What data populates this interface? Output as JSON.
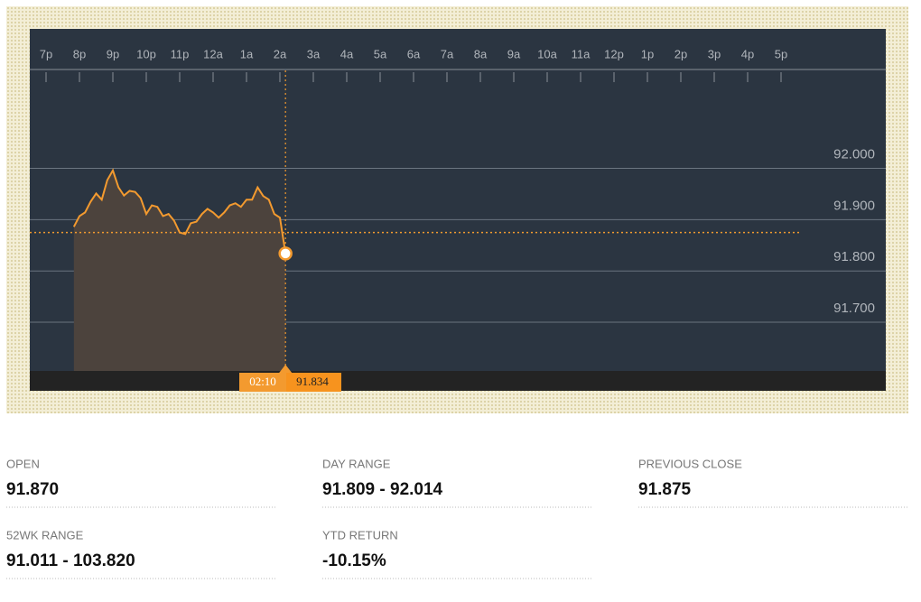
{
  "chart_data": {
    "type": "line",
    "categories": [
      "7p",
      null,
      null,
      null,
      null,
      null,
      "8p",
      null,
      null,
      null,
      null,
      null,
      "9p",
      null,
      null,
      null,
      null,
      null,
      "10p",
      null,
      null,
      null,
      null,
      null,
      "11p",
      null,
      null,
      null,
      null,
      null,
      "12a",
      null,
      null,
      null,
      null,
      null,
      "1a",
      null,
      null,
      null,
      null,
      null,
      "2a",
      null,
      null,
      null,
      null,
      null,
      "3a",
      null,
      null,
      null,
      null,
      null,
      "4a",
      null,
      null,
      null,
      null,
      null,
      "5a",
      null,
      null,
      null,
      null,
      null,
      "6a",
      null,
      null,
      null,
      null,
      null,
      "7a",
      null,
      null,
      null,
      null,
      null,
      "8a",
      null,
      null,
      null,
      null,
      null,
      "9a",
      null,
      null,
      null,
      null,
      null,
      "10a",
      null,
      null,
      null,
      null,
      null,
      "11a",
      null,
      null,
      null,
      null,
      null,
      "12p",
      null,
      null,
      null,
      null,
      null,
      "1p",
      null,
      null,
      null,
      null,
      null,
      "2p",
      null,
      null,
      null,
      null,
      null,
      "3p",
      null,
      null,
      null,
      null,
      null,
      "4p",
      null,
      null,
      null,
      null,
      null,
      "5p"
    ],
    "series": [
      {
        "color": "#f39a2f",
        "values": [
          null,
          null,
          null,
          null,
          null,
          91.886,
          91.907,
          91.914,
          91.935,
          91.951,
          91.939,
          91.977,
          91.996,
          91.963,
          91.947,
          91.956,
          91.954,
          91.942,
          91.911,
          91.928,
          91.925,
          91.907,
          91.911,
          91.898,
          91.875,
          91.872,
          91.893,
          91.896,
          91.911,
          91.921,
          91.914,
          91.904,
          91.914,
          91.928,
          91.932,
          91.925,
          91.939,
          91.939,
          91.963,
          91.946,
          91.939,
          91.911,
          91.904,
          91.834,
          null,
          null,
          null,
          null,
          null,
          null,
          null,
          null,
          null,
          null,
          null,
          null,
          null,
          null,
          null,
          null,
          null,
          null,
          null,
          null,
          null,
          null,
          null,
          null,
          null,
          null,
          null,
          null,
          null,
          null,
          null,
          null,
          null,
          null,
          null,
          null,
          null,
          null,
          null,
          null,
          null,
          null,
          null,
          null,
          null,
          null,
          null,
          null,
          null,
          null,
          null,
          null,
          null,
          null,
          null,
          null,
          null,
          null,
          null,
          null,
          null,
          null,
          null,
          null,
          null,
          null,
          null,
          null,
          null,
          null,
          null,
          null,
          null,
          null,
          null,
          null,
          null,
          null,
          null,
          null,
          null,
          null,
          null,
          null,
          null,
          null,
          null,
          null,
          null
        ]
      }
    ],
    "ylim": [
      91.605,
      92.191
    ],
    "yticks": [
      {
        "value": 91.7,
        "label": "91.700"
      },
      {
        "value": 91.8,
        "label": "91.800"
      },
      {
        "value": 91.9,
        "label": "91.900"
      },
      {
        "value": 92.0,
        "label": "92.000"
      }
    ],
    "reference_line": 91.875,
    "tooltip": {
      "x_label": "02:10",
      "value": 91.834
    }
  },
  "stats": [
    {
      "label": "OPEN",
      "value": "91.870"
    },
    {
      "label": "DAY RANGE",
      "value": "91.809 - 92.014"
    },
    {
      "label": "PREVIOUS CLOSE",
      "value": "91.875"
    },
    {
      "label": "52WK RANGE",
      "value": "91.011 - 103.820"
    },
    {
      "label": "YTD RETURN",
      "value": "-10.15%"
    }
  ]
}
